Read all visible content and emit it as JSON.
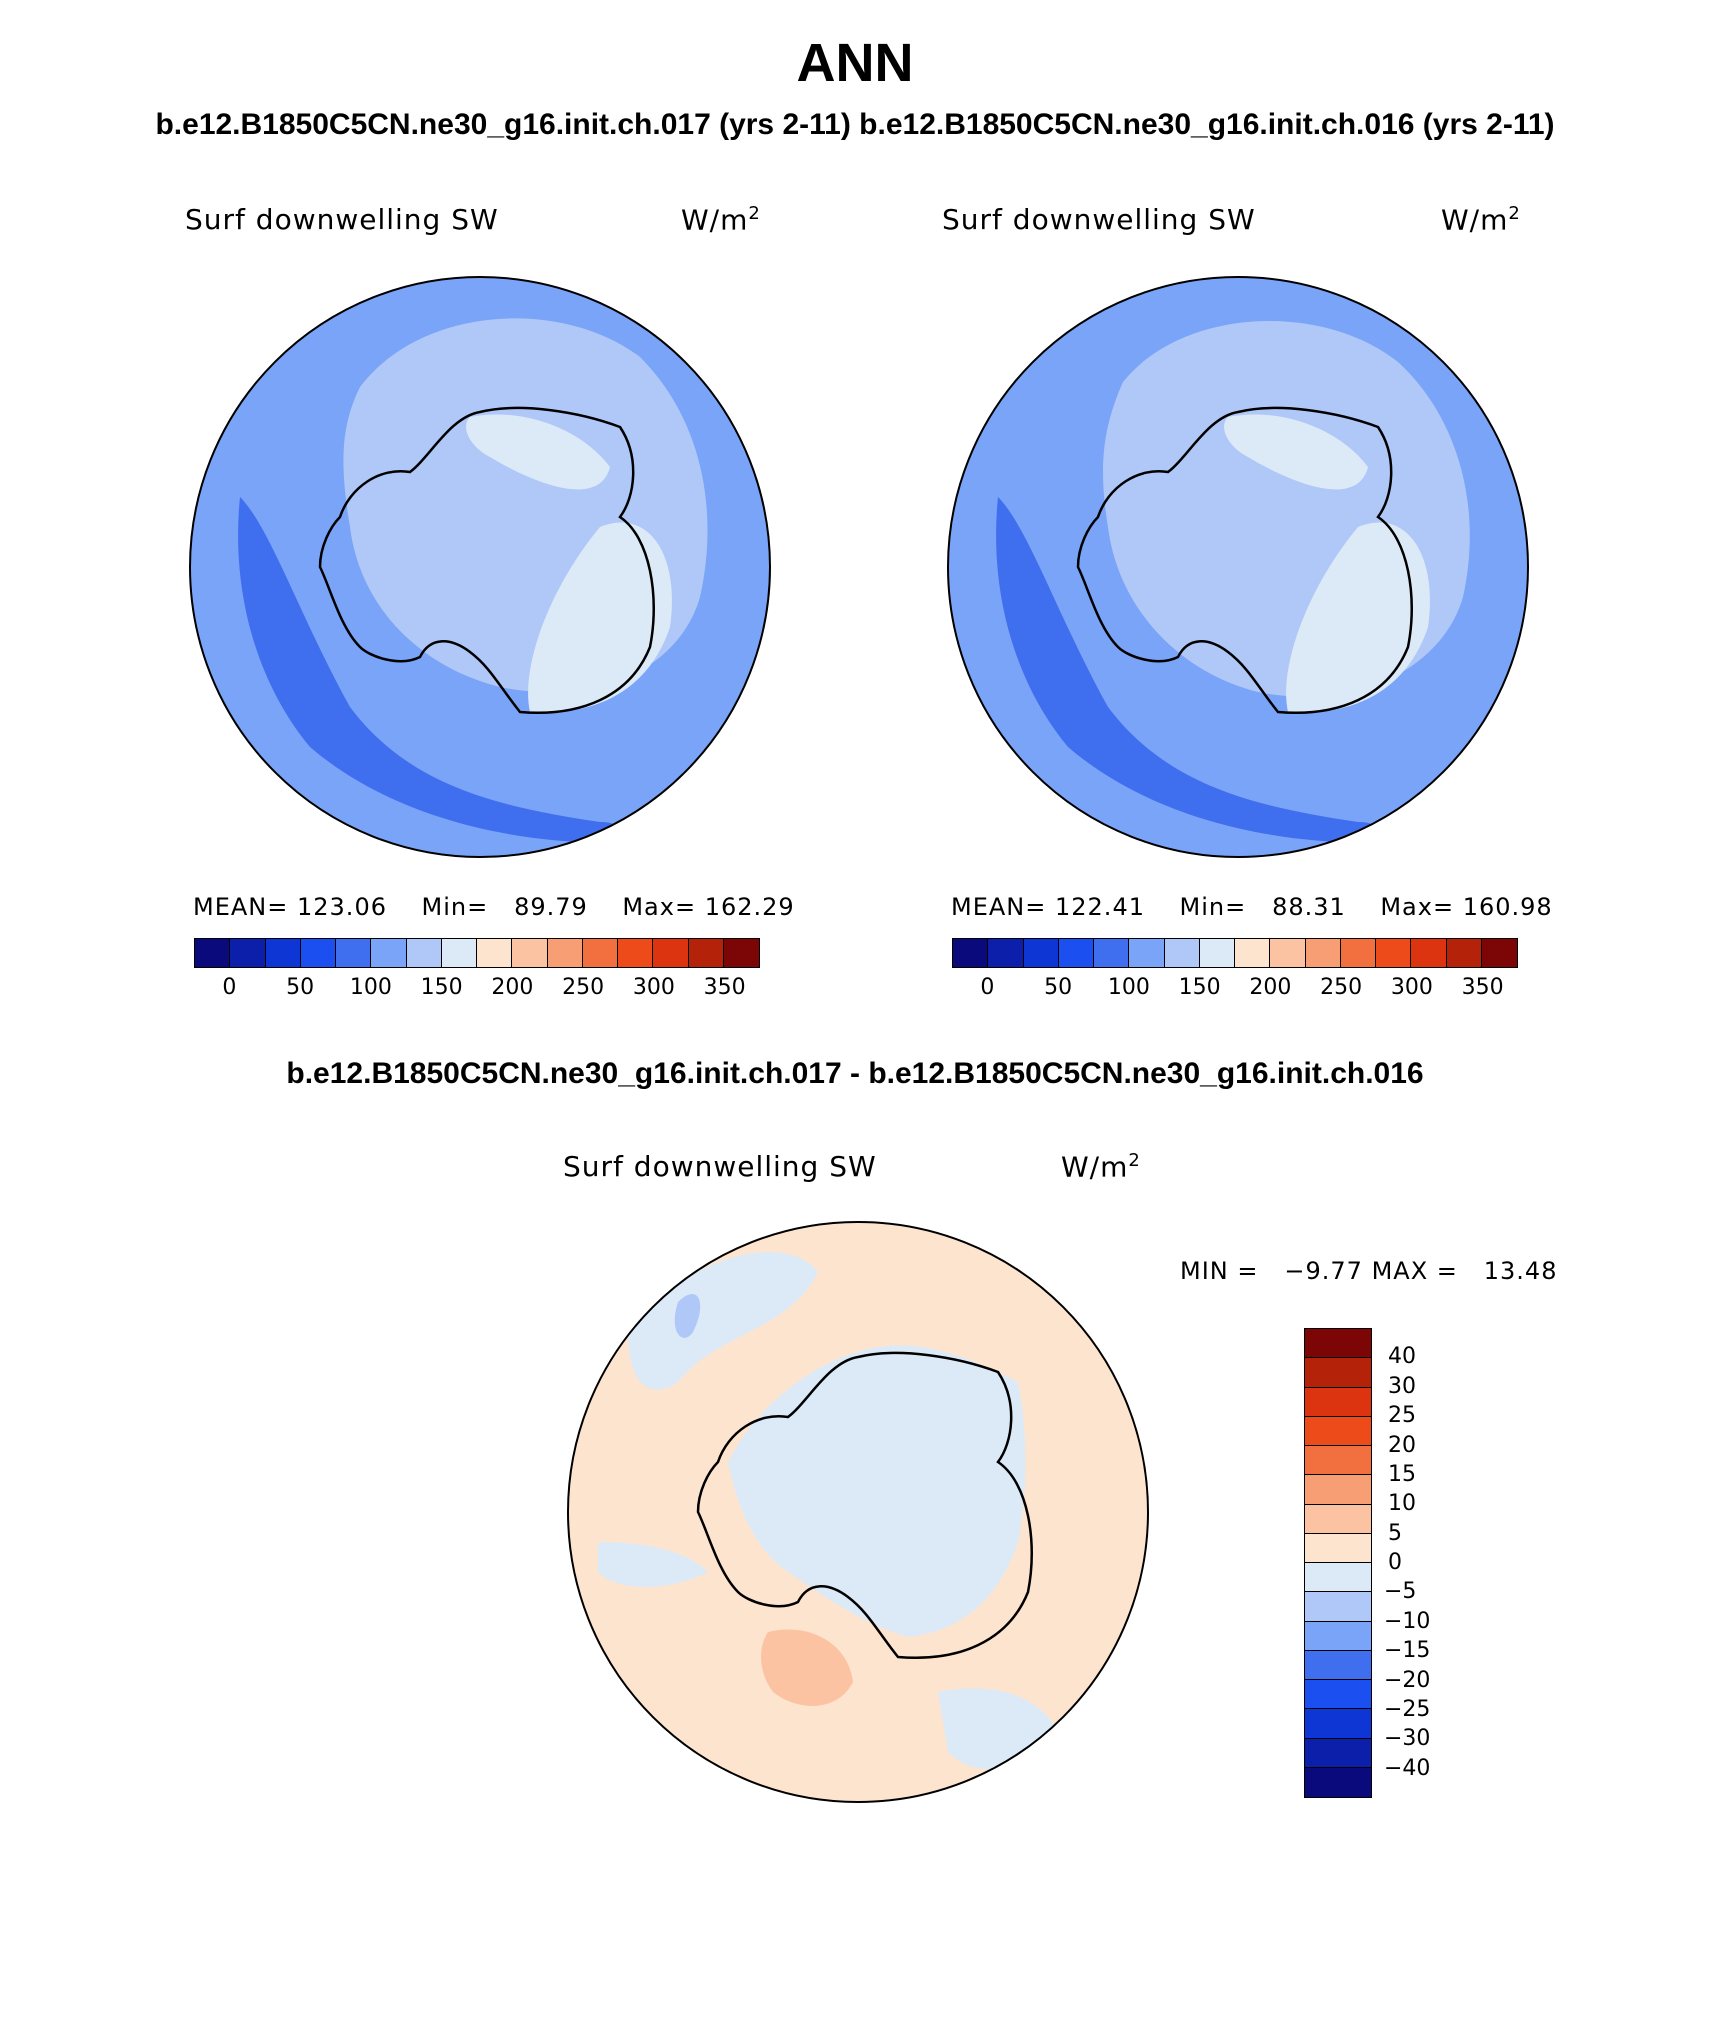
{
  "header": {
    "season": "ANN",
    "cases_title": "b.e12.B1850C5CN.ne30_g16.init.ch.017 (yrs 2-11) b.e12.B1850C5CN.ne30_g16.init.ch.016 (yrs 2-11)",
    "diff_title": "b.e12.B1850C5CN.ne30_g16.init.ch.017 - b.e12.B1850C5CN.ne30_g16.init.ch.016"
  },
  "colors": {
    "abs_scale": [
      "#0a0a7c",
      "#0b1fab",
      "#0e36d4",
      "#1b4ff0",
      "#3f6fee",
      "#7aa4f7",
      "#b0c8f8",
      "#dceaf8",
      "#fde4cf",
      "#fbc3a1",
      "#f79e75",
      "#f2703f",
      "#ee4b1b",
      "#dc3410",
      "#b4220a",
      "#7c0606"
    ],
    "diff_scale": [
      "#7c0606",
      "#b4220a",
      "#dc3410",
      "#ee4b1b",
      "#f2703f",
      "#f79e75",
      "#fbc3a1",
      "#fde4cf",
      "#dceaf8",
      "#b0c8f8",
      "#7aa4f7",
      "#3f6fee",
      "#1b4ff0",
      "#0e36d4",
      "#0b1fab",
      "#0a0a7c"
    ],
    "ocean_abs": "#7aa4f7",
    "ocean_abs_light": "#b0c8f8",
    "ocean_abs_dark": "#3f6fee",
    "ice_abs": "#dceaf8",
    "diff_pos": "#fde4cf",
    "diff_neg": "#dceaf8"
  },
  "panels": [
    {
      "id": "panel-017",
      "variable": "Surf downwelling SW",
      "units": "W/m",
      "units_exp": "2",
      "stats": {
        "mean_label": "MEAN=",
        "mean": "123.06",
        "min_label": "Min=",
        "min": "89.79",
        "max_label": "Max=",
        "max": "162.29"
      }
    },
    {
      "id": "panel-016",
      "variable": "Surf downwelling SW",
      "units": "W/m",
      "units_exp": "2",
      "stats": {
        "mean_label": "MEAN=",
        "mean": "122.41",
        "min_label": "Min=",
        "min": "88.31",
        "max_label": "Max=",
        "max": "160.98"
      }
    }
  ],
  "abs_colorbar_ticks": [
    "0",
    "50",
    "100",
    "150",
    "200",
    "250",
    "300",
    "350"
  ],
  "diff_panel": {
    "variable": "Surf downwelling SW",
    "units": "W/m",
    "units_exp": "2",
    "min_label": "MIN =",
    "min": "−9.77",
    "max_label": "MAX =",
    "max": "13.48",
    "colorbar_ticks": [
      "40",
      "30",
      "25",
      "20",
      "15",
      "10",
      "5",
      "0",
      "−5",
      "−10",
      "−15",
      "−20",
      "−25",
      "−30",
      "−40"
    ]
  }
}
